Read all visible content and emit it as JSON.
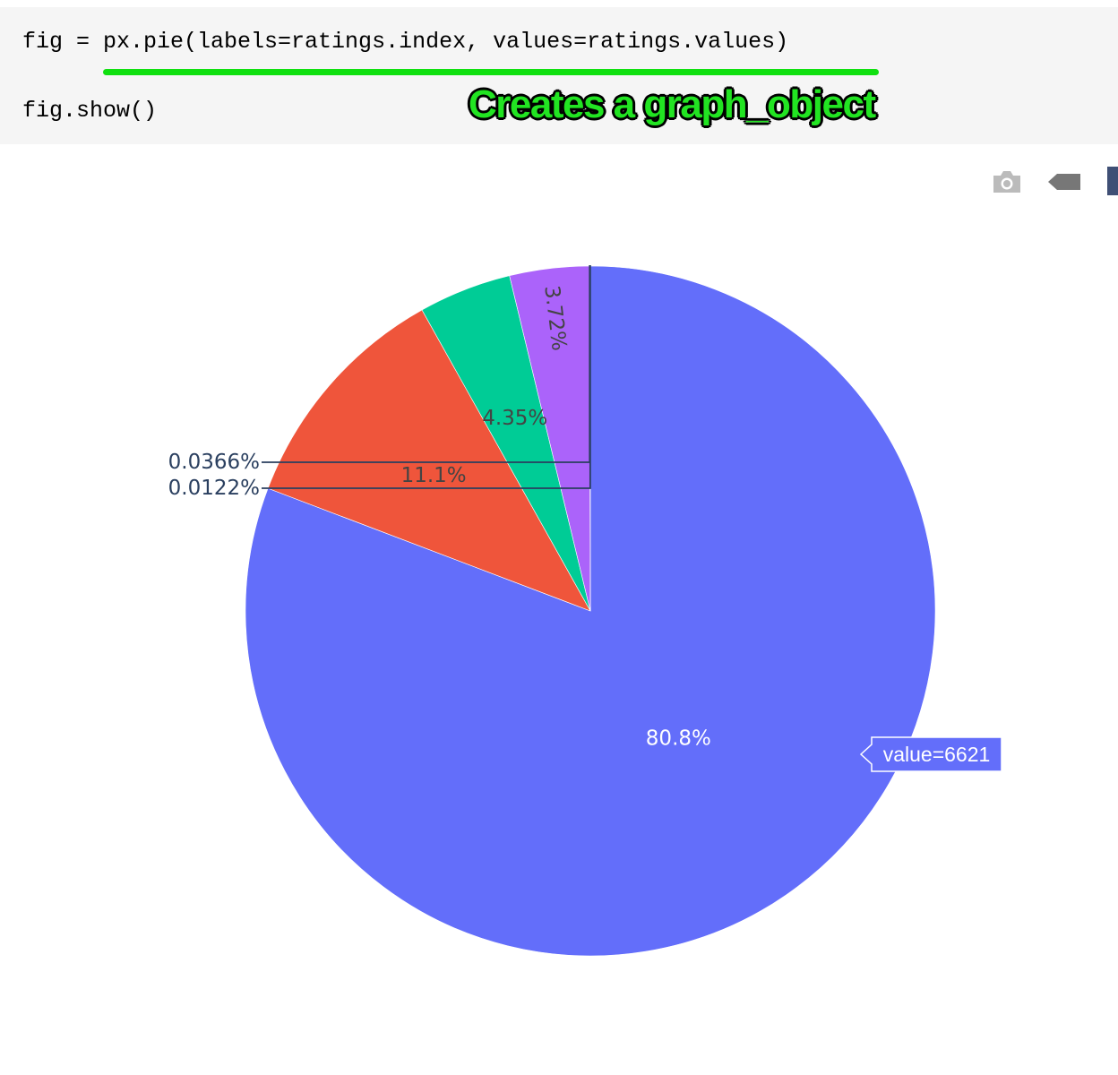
{
  "code": {
    "line1": "fig = px.pie(labels=ratings.index, values=ratings.values)",
    "line2": "fig.show()"
  },
  "annotation": {
    "text": "Creates a graph_object",
    "color": "#22e422",
    "underline_color": "#10e010"
  },
  "modebar": {
    "buttons": [
      "camera-icon",
      "tag-icon",
      "plotly-logo-icon"
    ],
    "icon_color": "#bbbbbb"
  },
  "chart_data": {
    "type": "pie",
    "title": "",
    "slices": [
      {
        "label_text": "80.8%",
        "value": 6621,
        "percent": 80.8,
        "color": "#636efa",
        "text_color": "#ffffff",
        "placement": "inside"
      },
      {
        "label_text": "11.1%",
        "percent": 11.1,
        "color": "#ef553b",
        "text_color": "#444444",
        "placement": "inside"
      },
      {
        "label_text": "4.35%",
        "percent": 4.35,
        "color": "#00cc96",
        "text_color": "#444444",
        "placement": "inside"
      },
      {
        "label_text": "3.72%",
        "percent": 3.72,
        "color": "#ab63fa",
        "text_color": "#444444",
        "placement": "inside"
      },
      {
        "label_text": "0.0366%",
        "percent": 0.0366,
        "color": "#ffa15a",
        "text_color": "#2a3f5f",
        "placement": "outside"
      },
      {
        "label_text": "0.0122%",
        "percent": 0.0122,
        "color": "#19d3f3",
        "text_color": "#2a3f5f",
        "placement": "outside"
      }
    ],
    "direction": "clockwise",
    "start": "top",
    "hover": {
      "text": "value=6621",
      "slice": "80.8%"
    }
  }
}
